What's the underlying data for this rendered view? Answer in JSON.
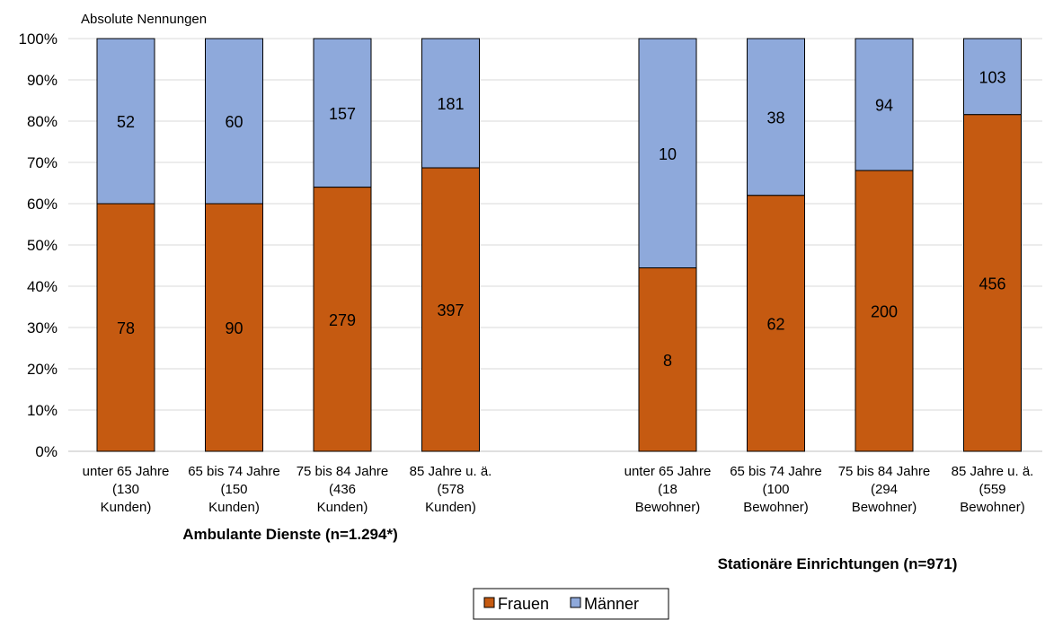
{
  "chart_data": {
    "type": "bar",
    "stacked": true,
    "percent_scale": true,
    "unit_label": "Absolute Nennungen",
    "y_ticks": [
      "0%",
      "10%",
      "20%",
      "30%",
      "40%",
      "50%",
      "60%",
      "70%",
      "80%",
      "90%",
      "100%"
    ],
    "ylim": [
      0,
      100
    ],
    "grid": true,
    "legend_position": "bottom",
    "colors": {
      "Frauen": "#C55A11",
      "Männer": "#8EA9DB"
    },
    "series": [
      {
        "name": "Frauen"
      },
      {
        "name": "Männer"
      }
    ],
    "groups": [
      {
        "title": "Ambulante Dienste (n=1.294*)",
        "categories": [
          {
            "label": [
              "unter 65 Jahre",
              "(130",
              "Kunden)"
            ],
            "Frauen": 78,
            "Männer": 52
          },
          {
            "label": [
              "65 bis 74 Jahre",
              "(150",
              "Kunden)"
            ],
            "Frauen": 90,
            "Männer": 60
          },
          {
            "label": [
              "75 bis 84 Jahre",
              "(436",
              "Kunden)"
            ],
            "Frauen": 279,
            "Männer": 157
          },
          {
            "label": [
              "85 Jahre u. ä.",
              "(578",
              "Kunden)"
            ],
            "Frauen": 397,
            "Männer": 181
          }
        ]
      },
      {
        "title": "Stationäre Einrichtungen (n=971)",
        "categories": [
          {
            "label": [
              "unter 65 Jahre",
              "(18",
              "Bewohner)"
            ],
            "Frauen": 8,
            "Männer": 10
          },
          {
            "label": [
              "65 bis 74 Jahre",
              "(100",
              "Bewohner)"
            ],
            "Frauen": 62,
            "Männer": 38
          },
          {
            "label": [
              "75 bis 84 Jahre",
              "(294",
              "Bewohner)"
            ],
            "Frauen": 200,
            "Männer": 94
          },
          {
            "label": [
              "85 Jahre u. ä.",
              "(559",
              "Bewohner)"
            ],
            "Frauen": 456,
            "Männer": 103
          }
        ]
      }
    ]
  }
}
